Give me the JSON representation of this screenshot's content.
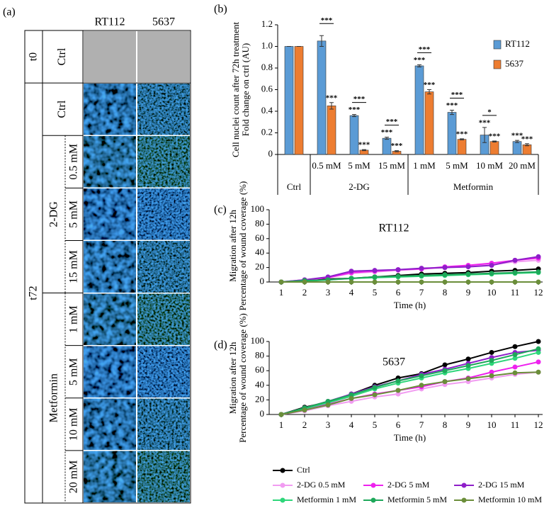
{
  "panel_a": {
    "label": "(a)",
    "columns": [
      "RT112",
      "5637"
    ],
    "t0": {
      "name": "t0",
      "rows": [
        "Ctrl"
      ]
    },
    "t72": {
      "name": "t72",
      "control": "Ctrl",
      "groups": [
        {
          "name": "2-DG",
          "rows": [
            "0.5 mM",
            "5 mM",
            "15 mM"
          ]
        },
        {
          "name": "Metformin",
          "rows": [
            "1 mM",
            "5 mM",
            "10 mM",
            "20 mM"
          ]
        }
      ]
    }
  },
  "chart_data": [
    {
      "type": "bar",
      "label": "(b)",
      "ylabel": [
        "Cell nuclei count after 72h treatment",
        "Fold change on ctrl (AU)"
      ],
      "groups": [
        {
          "name": "Ctrl",
          "categories": [
            null
          ]
        },
        {
          "name": "2-DG",
          "categories": [
            "0.5 mM",
            "5 mM",
            "15 mM"
          ]
        },
        {
          "name": "Metformin",
          "categories": [
            "1 mM",
            "5 mM",
            "10 mM",
            "20 mM"
          ]
        }
      ],
      "series": [
        {
          "name": "RT112",
          "color": "#5b9bd5",
          "star_color": "#5b9bd5",
          "values": [
            1.0,
            1.05,
            0.36,
            0.15,
            0.82,
            0.39,
            0.18,
            0.12
          ],
          "errors": [
            0,
            0.05,
            0.01,
            0.01,
            0.01,
            0.02,
            0.07,
            0.01
          ],
          "stars": [
            null,
            null,
            "***",
            "***",
            "***",
            "***",
            "***",
            "***"
          ]
        },
        {
          "name": "5637",
          "color": "#ed7d31",
          "star_color": "#ed7d31",
          "values": [
            1.0,
            0.45,
            0.04,
            0.03,
            0.58,
            0.14,
            0.12,
            0.09
          ],
          "errors": [
            0,
            0.03,
            0.005,
            0.005,
            0.02,
            0.005,
            0.005,
            0.01
          ],
          "stars": [
            null,
            "***",
            "***",
            "***",
            "***",
            "***",
            "***",
            "***"
          ]
        }
      ],
      "pair_stars": [
        null,
        "***",
        "***",
        "***",
        "***",
        "***",
        "*",
        null
      ],
      "ylim": [
        0,
        1.2
      ],
      "yticks": [
        0,
        0.2,
        0.4,
        0.6,
        0.8,
        {
          "value": 1,
          "label": "1.0"
        },
        1.2
      ]
    },
    {
      "type": "line",
      "label": "(c)",
      "title": "RT112",
      "ylabel": [
        "Migration after 12h",
        "Percentage of wound coverage (%)"
      ],
      "xlabel": "Time (h)",
      "x": [
        1,
        2,
        3,
        4,
        5,
        6,
        7,
        8,
        9,
        10,
        11,
        12
      ],
      "xlim": [
        1,
        12
      ],
      "xticks": [
        1,
        2,
        3,
        4,
        5,
        6,
        7,
        8,
        9,
        10,
        11,
        12
      ],
      "ylim": [
        0,
        100
      ],
      "yticks": [
        0,
        20,
        40,
        60,
        80,
        100
      ],
      "series": [
        {
          "color": "#000000",
          "values": [
            0,
            2,
            4,
            5,
            7,
            9,
            11,
            12,
            13,
            15,
            16,
            18
          ]
        },
        {
          "color": "#f19cf1",
          "values": [
            0,
            3,
            6,
            12,
            14,
            16,
            18,
            20,
            22,
            24,
            28,
            30
          ]
        },
        {
          "color": "#ee22ee",
          "values": [
            0,
            3,
            6,
            13,
            15,
            17,
            18,
            21,
            23,
            26,
            30,
            33
          ]
        },
        {
          "color": "#8e1fc9",
          "values": [
            0,
            3,
            7,
            15,
            16,
            17,
            19,
            20,
            21,
            23,
            30,
            35
          ]
        },
        {
          "color": "#2ed67a",
          "values": [
            0,
            1,
            3,
            5,
            6,
            7,
            8,
            9,
            10,
            11,
            12,
            13
          ]
        },
        {
          "color": "#1ea85a",
          "values": [
            0,
            2,
            3,
            5,
            7,
            8,
            9,
            10,
            11,
            12,
            13,
            14
          ]
        },
        {
          "color": "#6b8e3a",
          "values": [
            0,
            0,
            0,
            0,
            0,
            0,
            0,
            0,
            0,
            0,
            0,
            0
          ]
        }
      ]
    },
    {
      "type": "line",
      "label": "(d)",
      "title": "5637",
      "ylabel": [
        "Migration after 12h",
        "Percentage of wound coverage (%)"
      ],
      "xlabel": "Time (h)",
      "x": [
        1,
        2,
        3,
        4,
        5,
        6,
        7,
        8,
        9,
        10,
        11,
        12
      ],
      "xlim": [
        1,
        12
      ],
      "xticks": [
        1,
        2,
        3,
        4,
        5,
        6,
        7,
        8,
        9,
        10,
        11,
        12
      ],
      "ylim": [
        0,
        100
      ],
      "yticks": [
        0,
        20,
        40,
        60,
        80,
        100
      ],
      "series": [
        {
          "name": "Ctrl",
          "color": "#000000",
          "values": [
            0,
            10,
            17,
            28,
            40,
            50,
            56,
            68,
            76,
            85,
            93,
            100
          ]
        },
        {
          "name": "2-DG 0.5 mM",
          "color": "#f19cf1",
          "values": [
            0,
            5,
            12,
            18,
            24,
            28,
            35,
            41,
            45,
            50,
            55,
            58
          ]
        },
        {
          "name": "2-DG 5 mM",
          "color": "#ee22ee",
          "values": [
            0,
            7,
            14,
            22,
            28,
            33,
            38,
            45,
            50,
            58,
            65,
            72
          ]
        },
        {
          "name": "2-DG 15 mM",
          "color": "#8e1fc9",
          "values": [
            0,
            9,
            18,
            28,
            38,
            46,
            55,
            62,
            70,
            78,
            85,
            88
          ]
        },
        {
          "name": "Metformin 1 mM",
          "color": "#2ed67a",
          "values": [
            0,
            8,
            16,
            25,
            35,
            43,
            50,
            57,
            63,
            70,
            77,
            85
          ]
        },
        {
          "name": "Metformin 5 mM",
          "color": "#1ea85a",
          "values": [
            0,
            9,
            18,
            27,
            37,
            46,
            53,
            60,
            67,
            74,
            82,
            90
          ]
        },
        {
          "name": "Metformin 10 mM",
          "color": "#6b8e3a",
          "values": [
            0,
            6,
            13,
            22,
            27,
            33,
            40,
            45,
            49,
            53,
            57,
            58
          ]
        }
      ]
    }
  ]
}
